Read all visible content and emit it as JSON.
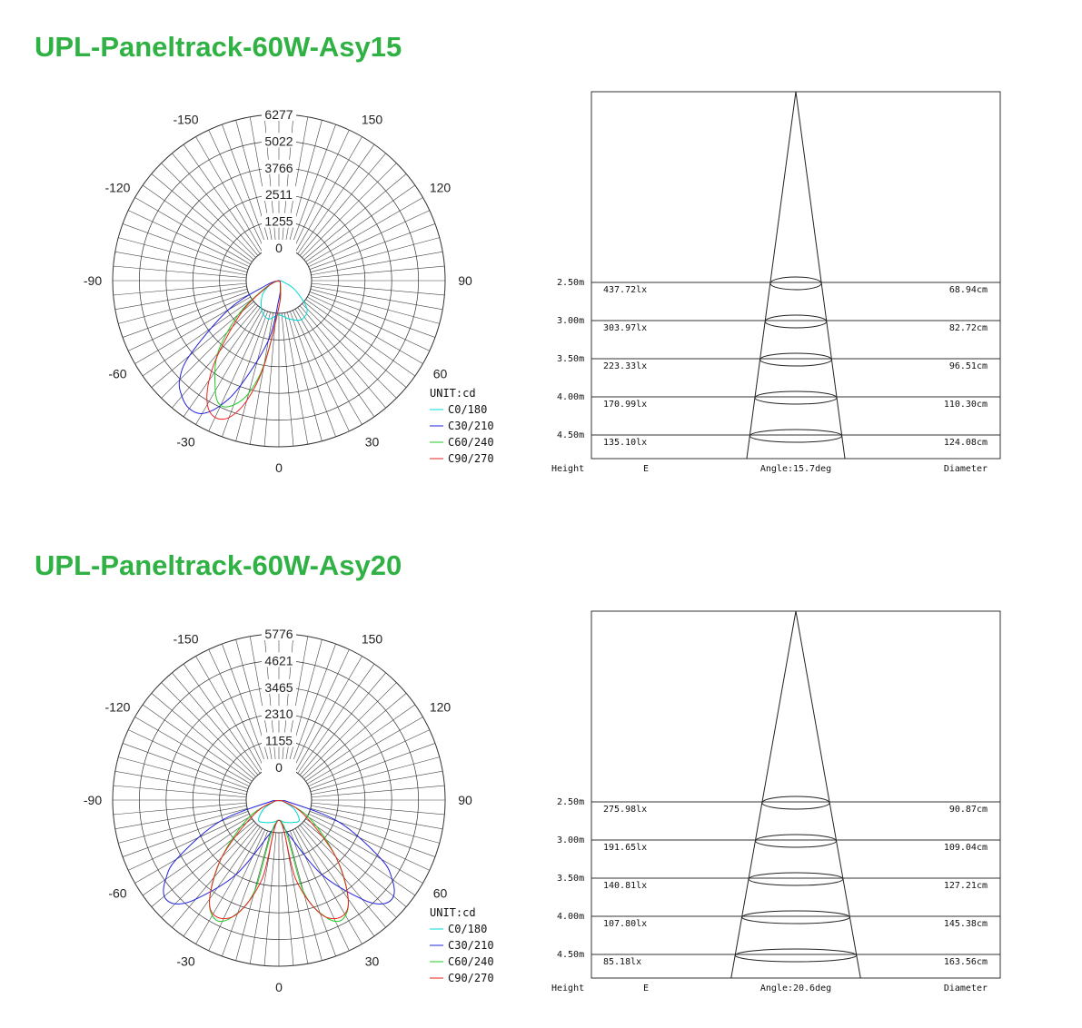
{
  "charts": [
    {
      "title": "UPL-Paneltrack-60W-Asy15",
      "polar": {
        "type": "polar",
        "unit_label": "UNIT:cd",
        "radial_ticks": [
          0,
          1255,
          2511,
          3766,
          5022,
          6277
        ],
        "radial_tick_labels": [
          "0",
          "1255",
          "2511",
          "3766",
          "5022",
          "6277"
        ],
        "max": 6277,
        "angle_labels": [
          "0",
          "30",
          "60",
          "90",
          "120",
          "150",
          "-150",
          "-120",
          "-90",
          "-60",
          "-30",
          "0"
        ],
        "legend": [
          "C0/180",
          "C30/210",
          "C60/240",
          "C90/270"
        ],
        "series": [
          {
            "name": "C0/180",
            "color": "#00d8d8",
            "points": [
              [
                -70,
                300
              ],
              [
                -50,
                800
              ],
              [
                -30,
                1300
              ],
              [
                -15,
                1500
              ],
              [
                0,
                1300
              ],
              [
                15,
                1500
              ],
              [
                30,
                1700
              ],
              [
                45,
                1500
              ],
              [
                60,
                700
              ],
              [
                75,
                150
              ],
              [
                90,
                0
              ]
            ]
          },
          {
            "name": "C30/210",
            "color": "#2222dd",
            "points": [
              [
                -90,
                0
              ],
              [
                -70,
                500
              ],
              [
                -60,
                2200
              ],
              [
                -50,
                4400
              ],
              [
                -45,
                5300
              ],
              [
                -40,
                5700
              ],
              [
                -35,
                5900
              ],
              [
                -30,
                5800
              ],
              [
                -25,
                5200
              ],
              [
                -20,
                4200
              ],
              [
                -10,
                2300
              ],
              [
                0,
                700
              ],
              [
                10,
                300
              ],
              [
                30,
                100
              ],
              [
                60,
                50
              ]
            ]
          },
          {
            "name": "C60/240",
            "color": "#22cc22",
            "points": [
              [
                -80,
                100
              ],
              [
                -60,
                700
              ],
              [
                -50,
                2000
              ],
              [
                -40,
                3600
              ],
              [
                -30,
                4800
              ],
              [
                -25,
                5200
              ],
              [
                -20,
                5000
              ],
              [
                -15,
                4400
              ],
              [
                -10,
                3200
              ],
              [
                0,
                1000
              ],
              [
                10,
                400
              ],
              [
                30,
                100
              ],
              [
                60,
                50
              ]
            ]
          },
          {
            "name": "C90/270",
            "color": "#ee2222",
            "points": [
              [
                -80,
                100
              ],
              [
                -60,
                600
              ],
              [
                -50,
                1800
              ],
              [
                -40,
                3500
              ],
              [
                -35,
                4600
              ],
              [
                -30,
                5400
              ],
              [
                -25,
                5700
              ],
              [
                -20,
                5500
              ],
              [
                -15,
                4700
              ],
              [
                -10,
                3300
              ],
              [
                0,
                1000
              ],
              [
                10,
                300
              ],
              [
                30,
                100
              ],
              [
                60,
                50
              ]
            ]
          }
        ]
      },
      "cone": {
        "angle_label": "Angle:15.7deg",
        "angle_deg": 15.7,
        "height_header": "Height",
        "e_header": "E",
        "diameter_header": "Diameter",
        "rows": [
          {
            "height": "2.50m",
            "e": "437.72lx",
            "diameter": "68.94cm"
          },
          {
            "height": "3.00m",
            "e": "303.97lx",
            "diameter": "82.72cm"
          },
          {
            "height": "3.50m",
            "e": "223.33lx",
            "diameter": "96.51cm"
          },
          {
            "height": "4.00m",
            "e": "170.99lx",
            "diameter": "110.30cm"
          },
          {
            "height": "4.50m",
            "e": "135.10lx",
            "diameter": "124.08cm"
          }
        ]
      }
    },
    {
      "title": "UPL-Paneltrack-60W-Asy20",
      "polar": {
        "type": "polar",
        "unit_label": "UNIT:cd",
        "radial_ticks": [
          0,
          1155,
          2310,
          3465,
          4621,
          5776
        ],
        "radial_tick_labels": [
          "0",
          "1155",
          "2310",
          "3465",
          "4621",
          "5776"
        ],
        "max": 5776,
        "angle_labels": [
          "0",
          "30",
          "60",
          "90",
          "120",
          "150",
          "-150",
          "-120",
          "-90",
          "-60",
          "-30",
          "0"
        ],
        "legend": [
          "C0/180",
          "C30/210",
          "C60/240",
          "C90/270"
        ],
        "series": [
          {
            "name": "C0/180",
            "color": "#00d8d8",
            "points": [
              [
                -80,
                100
              ],
              [
                -60,
                600
              ],
              [
                -45,
                1000
              ],
              [
                -30,
                900
              ],
              [
                -15,
                800
              ],
              [
                0,
                700
              ],
              [
                15,
                800
              ],
              [
                30,
                900
              ],
              [
                45,
                1000
              ],
              [
                60,
                600
              ],
              [
                80,
                100
              ]
            ]
          },
          {
            "name": "C30/210",
            "color": "#2222dd",
            "points": [
              [
                -85,
                200
              ],
              [
                -70,
                2200
              ],
              [
                -60,
                4100
              ],
              [
                -55,
                4800
              ],
              [
                -50,
                5200
              ],
              [
                -45,
                5100
              ],
              [
                -40,
                4500
              ],
              [
                -30,
                3000
              ],
              [
                -15,
                1200
              ],
              [
                0,
                700
              ],
              [
                15,
                1200
              ],
              [
                30,
                3000
              ],
              [
                40,
                4500
              ],
              [
                45,
                5100
              ],
              [
                50,
                5200
              ],
              [
                55,
                4800
              ],
              [
                60,
                4100
              ],
              [
                70,
                2200
              ],
              [
                85,
                200
              ]
            ]
          },
          {
            "name": "C60/240",
            "color": "#22cc22",
            "points": [
              [
                -80,
                100
              ],
              [
                -60,
                1200
              ],
              [
                -45,
                2800
              ],
              [
                -35,
                4200
              ],
              [
                -28,
                4700
              ],
              [
                -22,
                4400
              ],
              [
                -15,
                3300
              ],
              [
                0,
                700
              ],
              [
                15,
                3300
              ],
              [
                22,
                4400
              ],
              [
                28,
                4700
              ],
              [
                35,
                4200
              ],
              [
                45,
                2800
              ],
              [
                60,
                1200
              ],
              [
                80,
                100
              ]
            ]
          },
          {
            "name": "C90/270",
            "color": "#ee2222",
            "points": [
              [
                -80,
                100
              ],
              [
                -60,
                1000
              ],
              [
                -45,
                2800
              ],
              [
                -35,
                4200
              ],
              [
                -28,
                4600
              ],
              [
                -20,
                4200
              ],
              [
                -12,
                2800
              ],
              [
                0,
                700
              ],
              [
                12,
                2800
              ],
              [
                20,
                4200
              ],
              [
                28,
                4600
              ],
              [
                35,
                4200
              ],
              [
                45,
                2800
              ],
              [
                60,
                1000
              ],
              [
                80,
                100
              ]
            ]
          }
        ]
      },
      "cone": {
        "angle_label": "Angle:20.6deg",
        "angle_deg": 20.6,
        "height_header": "Height",
        "e_header": "E",
        "diameter_header": "Diameter",
        "rows": [
          {
            "height": "2.50m",
            "e": "275.98lx",
            "diameter": "90.87cm"
          },
          {
            "height": "3.00m",
            "e": "191.65lx",
            "diameter": "109.04cm"
          },
          {
            "height": "3.50m",
            "e": "140.81lx",
            "diameter": "127.21cm"
          },
          {
            "height": "4.00m",
            "e": "107.80lx",
            "diameter": "145.38cm"
          },
          {
            "height": "4.50m",
            "e": "85.18lx",
            "diameter": "163.56cm"
          }
        ]
      }
    }
  ]
}
